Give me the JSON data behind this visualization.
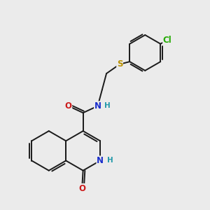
{
  "background_color": "#ebebeb",
  "bond_color": "#1a1a1a",
  "bond_width": 1.4,
  "atom_colors": {
    "N": "#1a2ecc",
    "O": "#cc1a1a",
    "S": "#b89000",
    "Cl": "#22aa00",
    "H": "#2299aa"
  },
  "font_size_atom": 8.5,
  "font_size_h": 7.5,
  "figsize": [
    3.0,
    3.0
  ],
  "dpi": 100
}
